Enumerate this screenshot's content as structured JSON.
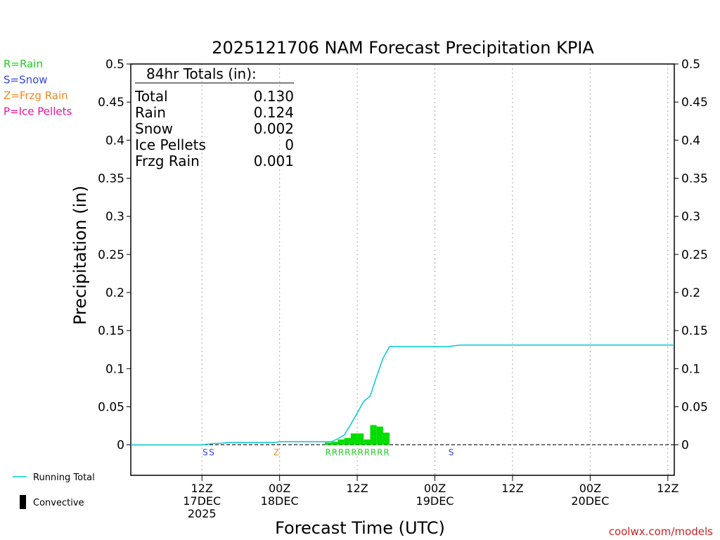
{
  "chart_data": {
    "type": "bar",
    "title": "2025121706 NAM Forecast Precipitation KPIA",
    "ylabel": "Precipitation (in)",
    "xlabel": "Forecast Time (UTC)",
    "credit": "coolwx.com/models",
    "ylim": [
      -0.04,
      0.5
    ],
    "xlim": [
      -5,
      79
    ],
    "grid_vertical": true,
    "y_ticks": [
      0,
      0.05,
      0.1,
      0.15,
      0.2,
      0.25,
      0.3,
      0.35,
      0.4,
      0.45,
      0.5
    ],
    "y_tick_labels": [
      "0",
      "0.05",
      "0.1",
      "0.15",
      "0.2",
      "0.25",
      "0.3",
      "0.35",
      "0.4",
      "0.45",
      "0.5"
    ],
    "x_ticks": [
      {
        "hour": 6,
        "label1": "12Z",
        "label2": "17DEC",
        "label3": "2025"
      },
      {
        "hour": 18,
        "label1": "00Z",
        "label2": "18DEC",
        "label3": ""
      },
      {
        "hour": 30,
        "label1": "12Z",
        "label2": "",
        "label3": ""
      },
      {
        "hour": 42,
        "label1": "00Z",
        "label2": "19DEC",
        "label3": ""
      },
      {
        "hour": 54,
        "label1": "12Z",
        "label2": "",
        "label3": ""
      },
      {
        "hour": 66,
        "label1": "00Z",
        "label2": "20DEC",
        "label3": ""
      },
      {
        "hour": 78,
        "label1": "12Z",
        "label2": "",
        "label3": ""
      }
    ],
    "totals": {
      "header": "84hr Totals (in):",
      "rows": [
        {
          "label": "Total",
          "value": "0.130"
        },
        {
          "label": "Rain",
          "value": "0.124"
        },
        {
          "label": "Snow",
          "value": "0.002"
        },
        {
          "label": "Ice Pellets",
          "value": "0"
        },
        {
          "label": "Frzg Rain",
          "value": "0.001"
        }
      ]
    },
    "type_legend": [
      {
        "text": "R=Rain",
        "color": "#22cc22"
      },
      {
        "text": "S=Snow",
        "color": "#3344ee"
      },
      {
        "text": "Z=Frzg Rain",
        "color": "#ee8822"
      },
      {
        "text": "P=Ice Pellets",
        "color": "#ee1199"
      }
    ],
    "series_legend": [
      {
        "name": "Running Total",
        "kind": "line",
        "color": "#00c8d0"
      },
      {
        "name": "Convective",
        "kind": "bar",
        "color": "#000000"
      }
    ],
    "bars": {
      "color": "#00dd00",
      "width_hours": 1,
      "x": [
        26,
        27,
        28,
        29,
        30,
        31,
        32,
        33,
        34,
        35
      ],
      "values": [
        0.003,
        0.004,
        0.007,
        0.009,
        0.015,
        0.015,
        0.007,
        0.026,
        0.024,
        0.016
      ]
    },
    "running_total": {
      "color": "#00c8d0",
      "x": [
        -5,
        0,
        1,
        2,
        3,
        4,
        5,
        6,
        7,
        8,
        9,
        10,
        11,
        12,
        13,
        14,
        15,
        16,
        17,
        18,
        19,
        20,
        21,
        22,
        23,
        24,
        25,
        26,
        27,
        28,
        29,
        30,
        31,
        32,
        33,
        34,
        35,
        36,
        37,
        38,
        39,
        40,
        41,
        42,
        43,
        44,
        45,
        46,
        79
      ],
      "values": [
        0.0,
        0.0,
        0.0,
        0.0,
        0.0,
        0.0,
        0.0,
        0.0,
        0.001,
        0.002,
        0.002,
        0.003,
        0.003,
        0.003,
        0.003,
        0.003,
        0.003,
        0.003,
        0.003,
        0.004,
        0.004,
        0.004,
        0.004,
        0.004,
        0.004,
        0.004,
        0.004,
        0.004,
        0.008,
        0.013,
        0.027,
        0.042,
        0.057,
        0.064,
        0.09,
        0.114,
        0.129,
        0.129,
        0.129,
        0.129,
        0.129,
        0.129,
        0.129,
        0.129,
        0.129,
        0.129,
        0.13,
        0.131,
        0.131
      ]
    },
    "precip_type_markers": [
      {
        "hour": 7,
        "text": "S",
        "color": "#3344ee"
      },
      {
        "hour": 8,
        "text": "S",
        "color": "#3344ee"
      },
      {
        "hour": 18,
        "text": "Z",
        "color": "#ee8822"
      },
      {
        "hour": 26,
        "text": "R",
        "color": "#22cc22"
      },
      {
        "hour": 27,
        "text": "R",
        "color": "#22cc22"
      },
      {
        "hour": 28,
        "text": "R",
        "color": "#22cc22"
      },
      {
        "hour": 29,
        "text": "R",
        "color": "#22cc22"
      },
      {
        "hour": 30,
        "text": "R",
        "color": "#22cc22"
      },
      {
        "hour": 31,
        "text": "R",
        "color": "#22cc22"
      },
      {
        "hour": 32,
        "text": "R",
        "color": "#22cc22"
      },
      {
        "hour": 33,
        "text": "R",
        "color": "#22cc22"
      },
      {
        "hour": 34,
        "text": "R",
        "color": "#22cc22"
      },
      {
        "hour": 35,
        "text": "R",
        "color": "#22cc22"
      },
      {
        "hour": 45,
        "text": "S",
        "color": "#3344ee"
      }
    ]
  }
}
